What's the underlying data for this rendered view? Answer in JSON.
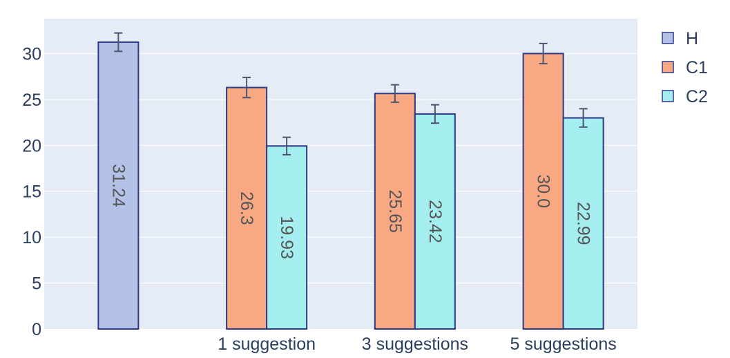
{
  "chart_data": {
    "type": "bar",
    "categories": [
      "",
      "1 suggestion",
      "3 suggestions",
      "5 suggestions"
    ],
    "series": [
      {
        "name": "H",
        "values": [
          31.24,
          null,
          null,
          null
        ],
        "labels": [
          "31.24",
          null,
          null,
          null
        ],
        "errors": [
          1.0,
          null,
          null,
          null
        ],
        "color": "#b3c2e6",
        "stroke": "#2e3a87"
      },
      {
        "name": "C1",
        "values": [
          null,
          26.3,
          25.65,
          30.0
        ],
        "labels": [
          null,
          "26.3",
          "25.65",
          "30.0"
        ],
        "errors": [
          null,
          1.1,
          0.95,
          1.1
        ],
        "color": "#f8a882",
        "stroke": "#2e3a87"
      },
      {
        "name": "C2",
        "values": [
          null,
          19.93,
          23.42,
          22.99
        ],
        "labels": [
          null,
          "19.93",
          "23.42",
          "22.99"
        ],
        "errors": [
          null,
          0.95,
          1.0,
          1.0
        ],
        "color": "#a4eef0",
        "stroke": "#2e3a87"
      }
    ],
    "yticks": [
      "0",
      "5",
      "10",
      "15",
      "20",
      "25",
      "30"
    ],
    "ylim": [
      0,
      33.8
    ],
    "grid": true,
    "legend_placement": "top-right",
    "colors": {
      "plot_bg": "#e5ecf6",
      "grid": "#ffffff",
      "text": "#2a3f5f",
      "error_bar": "#4a5670"
    },
    "title": "",
    "xlabel": "",
    "ylabel": ""
  }
}
